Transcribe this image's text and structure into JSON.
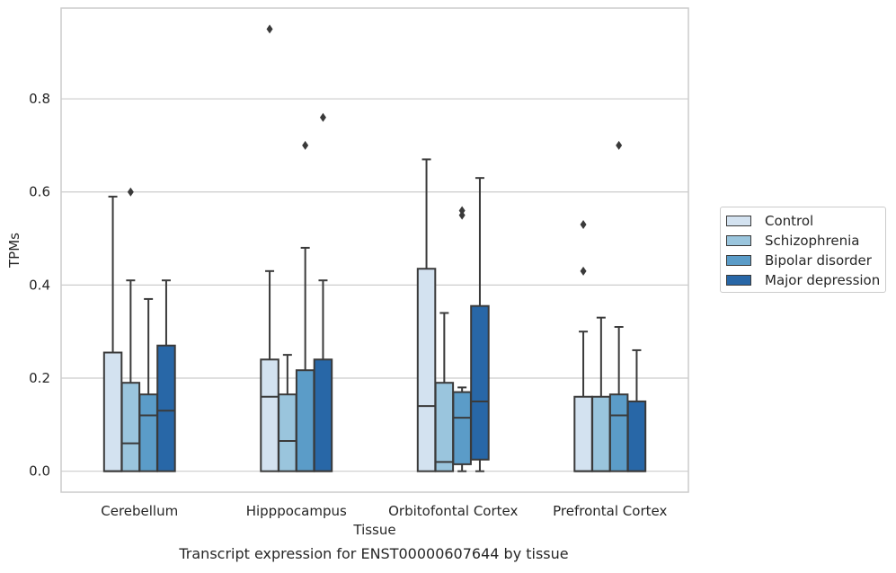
{
  "chart_data": {
    "type": "box",
    "xlabel": "Tissue",
    "ylabel": "TPMs",
    "caption": "Transcript expression for ENST00000607644 by tissue",
    "ylim": [
      -0.045,
      0.995
    ],
    "yticks": [
      "0.0",
      "0.2",
      "0.4",
      "0.6",
      "0.8"
    ],
    "ytick_values": [
      0.0,
      0.2,
      0.4,
      0.6,
      0.8
    ],
    "grid": "horizontal",
    "legend_position": "outside-right",
    "categories": [
      "Cerebellum",
      "Hipppocampus",
      "Orbitofontal Cortex",
      "Prefrontal Cortex"
    ],
    "series": [
      {
        "name": "Control",
        "color": "#d3e2f0",
        "boxes": [
          {
            "whislo": 0.0,
            "q1": 0.0,
            "med": 0.0,
            "q3": 0.255,
            "whishi": 0.59,
            "fliers": []
          },
          {
            "whislo": 0.0,
            "q1": 0.0,
            "med": 0.16,
            "q3": 0.24,
            "whishi": 0.43,
            "fliers": [
              0.95
            ]
          },
          {
            "whislo": 0.0,
            "q1": 0.0,
            "med": 0.14,
            "q3": 0.435,
            "whishi": 0.67,
            "fliers": []
          },
          {
            "whislo": 0.0,
            "q1": 0.0,
            "med": 0.0,
            "q3": 0.16,
            "whishi": 0.3,
            "fliers": [
              0.43,
              0.53
            ]
          }
        ]
      },
      {
        "name": "Schizophrenia",
        "color": "#9ac5dd",
        "boxes": [
          {
            "whislo": 0.0,
            "q1": 0.0,
            "med": 0.06,
            "q3": 0.19,
            "whishi": 0.41,
            "fliers": [
              0.6
            ]
          },
          {
            "whislo": 0.0,
            "q1": 0.0,
            "med": 0.065,
            "q3": 0.165,
            "whishi": 0.25,
            "fliers": []
          },
          {
            "whislo": 0.0,
            "q1": 0.0,
            "med": 0.02,
            "q3": 0.19,
            "whishi": 0.34,
            "fliers": []
          },
          {
            "whislo": 0.0,
            "q1": 0.0,
            "med": 0.0,
            "q3": 0.16,
            "whishi": 0.33,
            "fliers": []
          }
        ]
      },
      {
        "name": "Bipolar disorder",
        "color": "#5b9cc8",
        "boxes": [
          {
            "whislo": 0.0,
            "q1": 0.0,
            "med": 0.12,
            "q3": 0.165,
            "whishi": 0.37,
            "fliers": []
          },
          {
            "whislo": 0.0,
            "q1": 0.0,
            "med": 0.0,
            "q3": 0.217,
            "whishi": 0.48,
            "fliers": [
              0.7
            ]
          },
          {
            "whislo": 0.0,
            "q1": 0.015,
            "med": 0.115,
            "q3": 0.17,
            "whishi": 0.18,
            "fliers": [
              0.55,
              0.56
            ]
          },
          {
            "whislo": 0.0,
            "q1": 0.0,
            "med": 0.12,
            "q3": 0.165,
            "whishi": 0.31,
            "fliers": [
              0.7
            ]
          }
        ]
      },
      {
        "name": "Major depression",
        "color": "#2867a7",
        "boxes": [
          {
            "whislo": 0.0,
            "q1": 0.0,
            "med": 0.13,
            "q3": 0.27,
            "whishi": 0.41,
            "fliers": []
          },
          {
            "whislo": 0.0,
            "q1": 0.0,
            "med": 0.0,
            "q3": 0.24,
            "whishi": 0.41,
            "fliers": [
              0.76
            ]
          },
          {
            "whislo": 0.0,
            "q1": 0.025,
            "med": 0.15,
            "q3": 0.355,
            "whishi": 0.63,
            "fliers": []
          },
          {
            "whislo": 0.0,
            "q1": 0.0,
            "med": 0.0,
            "q3": 0.15,
            "whishi": 0.26,
            "fliers": []
          }
        ]
      }
    ]
  }
}
